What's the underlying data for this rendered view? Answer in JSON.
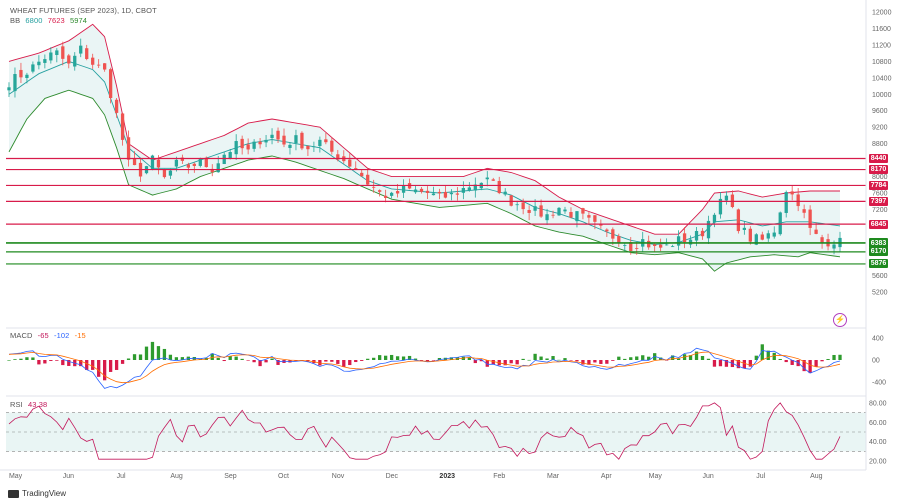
{
  "legend": {
    "title": "WHEAT FUTURES (SEP 2023), 1D, CBOT",
    "bb_label": "BB",
    "bb_values": [
      "6800",
      "7623",
      "5974"
    ],
    "macd_label": "MACD",
    "macd_values": [
      "-65",
      "-102",
      "-15"
    ],
    "rsi_label": "RSI",
    "rsi_value": "43.38"
  },
  "watermark": "TradingView",
  "colors": {
    "up": "#26a69a",
    "down": "#ef5350",
    "bb_upper": "#d81b4a",
    "bb_lower": "#2e8b2e",
    "bb_mid": "#26a0a0",
    "resistance": "#d81b4a",
    "support": "#1e8a1e",
    "macd": "#2962ff",
    "signal": "#ff6d00",
    "rsi": "#c2185b"
  },
  "chart_data": [
    {
      "type": "candlestick",
      "name": "price",
      "ylim": [
        5000,
        12000
      ],
      "y_ticks": [
        "12000",
        "11600",
        "11200",
        "10800",
        "10400",
        "10000",
        "9600",
        "9200",
        "8800",
        "8000",
        "7600",
        "7200",
        "5600",
        "5200"
      ],
      "x_ticks": [
        "May",
        "Jun",
        "Jul",
        "Aug",
        "Sep",
        "Oct",
        "Nov",
        "Dec",
        "2023",
        "Feb",
        "Mar",
        "Apr",
        "May",
        "Jun",
        "Jul",
        "Aug"
      ],
      "close_path": [
        [
          0,
          10300
        ],
        [
          3,
          10550
        ],
        [
          6,
          10900
        ],
        [
          8,
          11000
        ],
        [
          10,
          10700
        ],
        [
          12,
          11100
        ],
        [
          14,
          10750
        ],
        [
          16,
          10550
        ],
        [
          18,
          9500
        ],
        [
          20,
          8300
        ],
        [
          22,
          8100
        ],
        [
          24,
          8400
        ],
        [
          26,
          7950
        ],
        [
          28,
          8300
        ],
        [
          30,
          8250
        ],
        [
          32,
          8350
        ],
        [
          34,
          8200
        ],
        [
          36,
          8550
        ],
        [
          38,
          8750
        ],
        [
          40,
          8600
        ],
        [
          42,
          8900
        ],
        [
          44,
          9000
        ],
        [
          46,
          8800
        ],
        [
          48,
          8900
        ],
        [
          50,
          8700
        ],
        [
          52,
          8850
        ],
        [
          54,
          8600
        ],
        [
          56,
          8400
        ],
        [
          58,
          8200
        ],
        [
          60,
          7850
        ],
        [
          62,
          7600
        ],
        [
          64,
          7500
        ],
        [
          66,
          7700
        ],
        [
          68,
          7650
        ],
        [
          70,
          7600
        ],
        [
          72,
          7480
        ],
        [
          74,
          7550
        ],
        [
          76,
          7700
        ],
        [
          78,
          7850
        ],
        [
          80,
          7900
        ],
        [
          82,
          7700
        ],
        [
          84,
          7400
        ],
        [
          86,
          7300
        ],
        [
          88,
          7150
        ],
        [
          90,
          7050
        ],
        [
          92,
          7250
        ],
        [
          94,
          7100
        ],
        [
          96,
          7000
        ],
        [
          98,
          6800
        ],
        [
          100,
          6600
        ],
        [
          102,
          6500
        ],
        [
          104,
          6300
        ],
        [
          106,
          6450
        ],
        [
          108,
          6250
        ],
        [
          110,
          6300
        ],
        [
          112,
          6450
        ],
        [
          114,
          6500
        ],
        [
          116,
          6650
        ],
        [
          118,
          7200
        ],
        [
          120,
          7500
        ],
        [
          122,
          6800
        ],
        [
          124,
          6500
        ],
        [
          126,
          6450
        ],
        [
          128,
          6700
        ],
        [
          130,
          7700
        ],
        [
          132,
          7400
        ],
        [
          134,
          6700
        ],
        [
          136,
          6400
        ],
        [
          138,
          6450
        ],
        [
          139,
          6400
        ]
      ],
      "bb_upper_path": [
        [
          0,
          10800
        ],
        [
          5,
          11000
        ],
        [
          10,
          11300
        ],
        [
          14,
          11700
        ],
        [
          16,
          11400
        ],
        [
          18,
          10200
        ],
        [
          20,
          8800
        ],
        [
          24,
          8400
        ],
        [
          28,
          8600
        ],
        [
          32,
          8800
        ],
        [
          36,
          9000
        ],
        [
          40,
          9300
        ],
        [
          44,
          9400
        ],
        [
          48,
          9300
        ],
        [
          52,
          9200
        ],
        [
          56,
          8700
        ],
        [
          60,
          8200
        ],
        [
          64,
          8000
        ],
        [
          68,
          8000
        ],
        [
          72,
          8000
        ],
        [
          76,
          8000
        ],
        [
          80,
          8200
        ],
        [
          84,
          8100
        ],
        [
          88,
          7900
        ],
        [
          92,
          7500
        ],
        [
          96,
          7200
        ],
        [
          100,
          7000
        ],
        [
          104,
          6800
        ],
        [
          108,
          6600
        ],
        [
          112,
          6600
        ],
        [
          116,
          7200
        ],
        [
          118,
          7600
        ],
        [
          122,
          7650
        ],
        [
          126,
          7500
        ],
        [
          130,
          7600
        ],
        [
          134,
          7650
        ],
        [
          139,
          7650
        ]
      ],
      "bb_mid_path": [
        [
          0,
          10000
        ],
        [
          5,
          10500
        ],
        [
          10,
          10800
        ],
        [
          14,
          10600
        ],
        [
          16,
          10300
        ],
        [
          18,
          9500
        ],
        [
          20,
          8700
        ],
        [
          24,
          8200
        ],
        [
          28,
          8200
        ],
        [
          32,
          8400
        ],
        [
          36,
          8600
        ],
        [
          40,
          8800
        ],
        [
          44,
          8900
        ],
        [
          48,
          8800
        ],
        [
          52,
          8700
        ],
        [
          56,
          8300
        ],
        [
          60,
          7900
        ],
        [
          64,
          7700
        ],
        [
          68,
          7650
        ],
        [
          72,
          7600
        ],
        [
          76,
          7650
        ],
        [
          80,
          7700
        ],
        [
          84,
          7550
        ],
        [
          88,
          7250
        ],
        [
          92,
          7100
        ],
        [
          96,
          6900
        ],
        [
          100,
          6650
        ],
        [
          104,
          6450
        ],
        [
          108,
          6350
        ],
        [
          112,
          6400
        ],
        [
          116,
          6600
        ],
        [
          118,
          6900
        ],
        [
          122,
          6950
        ],
        [
          126,
          6800
        ],
        [
          130,
          6900
        ],
        [
          134,
          6900
        ],
        [
          139,
          6800
        ]
      ],
      "bb_lower_path": [
        [
          0,
          8600
        ],
        [
          3,
          9400
        ],
        [
          6,
          9900
        ],
        [
          10,
          10100
        ],
        [
          14,
          9900
        ],
        [
          16,
          9500
        ],
        [
          18,
          8700
        ],
        [
          20,
          7800
        ],
        [
          24,
          7550
        ],
        [
          28,
          7700
        ],
        [
          32,
          8000
        ],
        [
          36,
          8200
        ],
        [
          40,
          8400
        ],
        [
          44,
          8500
        ],
        [
          48,
          8350
        ],
        [
          52,
          8150
        ],
        [
          56,
          7950
        ],
        [
          60,
          7700
        ],
        [
          64,
          7450
        ],
        [
          68,
          7350
        ],
        [
          72,
          7250
        ],
        [
          76,
          7300
        ],
        [
          80,
          7350
        ],
        [
          84,
          7100
        ],
        [
          88,
          6800
        ],
        [
          92,
          6650
        ],
        [
          96,
          6550
        ],
        [
          100,
          6350
        ],
        [
          104,
          6150
        ],
        [
          108,
          6100
        ],
        [
          112,
          6150
        ],
        [
          116,
          6000
        ],
        [
          118,
          5700
        ],
        [
          120,
          5900
        ],
        [
          124,
          6050
        ],
        [
          128,
          6100
        ],
        [
          132,
          6050
        ],
        [
          134,
          6150
        ],
        [
          139,
          6050
        ]
      ],
      "levels": [
        {
          "value": 8440,
          "label": "8440",
          "kind": "resistance"
        },
        {
          "value": 8170,
          "label": "8170",
          "kind": "resistance"
        },
        {
          "value": 7784,
          "label": "7784",
          "kind": "resistance"
        },
        {
          "value": 7397,
          "label": "7397",
          "kind": "resistance"
        },
        {
          "value": 6845,
          "label": "6845",
          "kind": "resistance"
        },
        {
          "value": 6392,
          "label": "6392",
          "kind": "support"
        },
        {
          "value": 6383,
          "label": "6383",
          "kind": "support"
        },
        {
          "value": 6170,
          "label": "6170",
          "kind": "support"
        },
        {
          "value": 5876,
          "label": "5876",
          "kind": "support"
        }
      ]
    },
    {
      "type": "bar",
      "name": "MACD",
      "ylim": [
        -50,
        50
      ],
      "y_ticks": [
        "400",
        "00",
        "-400"
      ]
    },
    {
      "type": "line",
      "name": "RSI",
      "ylim": [
        15,
        85
      ],
      "y_ticks": [
        "80.00",
        "60.00",
        "40.00",
        "20.00"
      ],
      "guides": [
        70,
        50,
        30
      ]
    }
  ]
}
